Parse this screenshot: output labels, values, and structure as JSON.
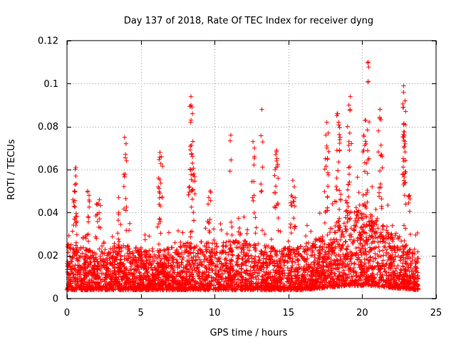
{
  "chart_data": {
    "type": "scatter",
    "title": "Day 137 of 2018, Rate Of TEC Index for receiver dyng",
    "xlabel": "GPS time / hours",
    "ylabel": "ROTI / TECUs",
    "xlim": [
      0,
      25
    ],
    "ylim": [
      0,
      0.12
    ],
    "xticks": [
      0,
      5,
      10,
      15,
      20,
      25
    ],
    "yticks": [
      0,
      0.02,
      0.04,
      0.06,
      0.08,
      0.1,
      0.12
    ],
    "xtick_labels": [
      "0",
      "5",
      "10",
      "15",
      "20",
      "25"
    ],
    "ytick_labels": [
      "0",
      "0.02",
      "0.04",
      "0.06",
      "0.08",
      "0.1",
      "0.12"
    ],
    "grid": true,
    "marker": "plus",
    "series_color": "#ff0000",
    "data_range": {
      "x": [
        0,
        23.8
      ]
    },
    "baseline_envelope": [
      {
        "x": 0.0,
        "low": 0.004,
        "high": 0.026
      },
      {
        "x": 2.0,
        "low": 0.004,
        "high": 0.022
      },
      {
        "x": 4.0,
        "low": 0.004,
        "high": 0.025
      },
      {
        "x": 6.0,
        "low": 0.004,
        "high": 0.022
      },
      {
        "x": 8.0,
        "low": 0.004,
        "high": 0.026
      },
      {
        "x": 10.0,
        "low": 0.004,
        "high": 0.027
      },
      {
        "x": 12.0,
        "low": 0.004,
        "high": 0.027
      },
      {
        "x": 14.0,
        "low": 0.004,
        "high": 0.024
      },
      {
        "x": 16.0,
        "low": 0.004,
        "high": 0.025
      },
      {
        "x": 17.5,
        "low": 0.005,
        "high": 0.03
      },
      {
        "x": 19.0,
        "low": 0.006,
        "high": 0.042
      },
      {
        "x": 20.5,
        "low": 0.006,
        "high": 0.04
      },
      {
        "x": 22.0,
        "low": 0.005,
        "high": 0.032
      },
      {
        "x": 23.8,
        "low": 0.004,
        "high": 0.022
      }
    ],
    "notable_points": [
      {
        "x": 0.6,
        "y": 0.061
      },
      {
        "x": 0.6,
        "y": 0.057
      },
      {
        "x": 0.5,
        "y": 0.05
      },
      {
        "x": 0.4,
        "y": 0.046
      },
      {
        "x": 1.4,
        "y": 0.05
      },
      {
        "x": 1.5,
        "y": 0.048
      },
      {
        "x": 2.0,
        "y": 0.044
      },
      {
        "x": 2.2,
        "y": 0.046
      },
      {
        "x": 3.5,
        "y": 0.047
      },
      {
        "x": 3.9,
        "y": 0.075
      },
      {
        "x": 4.0,
        "y": 0.072
      },
      {
        "x": 6.3,
        "y": 0.068
      },
      {
        "x": 6.4,
        "y": 0.066
      },
      {
        "x": 6.2,
        "y": 0.056
      },
      {
        "x": 6.3,
        "y": 0.049
      },
      {
        "x": 8.4,
        "y": 0.094
      },
      {
        "x": 8.4,
        "y": 0.09
      },
      {
        "x": 8.5,
        "y": 0.086
      },
      {
        "x": 8.4,
        "y": 0.083
      },
      {
        "x": 8.5,
        "y": 0.066
      },
      {
        "x": 8.5,
        "y": 0.063
      },
      {
        "x": 8.6,
        "y": 0.058
      },
      {
        "x": 8.3,
        "y": 0.052
      },
      {
        "x": 9.7,
        "y": 0.05
      },
      {
        "x": 9.6,
        "y": 0.047
      },
      {
        "x": 11.1,
        "y": 0.076
      },
      {
        "x": 12.6,
        "y": 0.073
      },
      {
        "x": 12.7,
        "y": 0.07
      },
      {
        "x": 12.7,
        "y": 0.066
      },
      {
        "x": 13.2,
        "y": 0.088
      },
      {
        "x": 14.2,
        "y": 0.069
      },
      {
        "x": 14.2,
        "y": 0.064
      },
      {
        "x": 14.1,
        "y": 0.06
      },
      {
        "x": 14.3,
        "y": 0.056
      },
      {
        "x": 15.3,
        "y": 0.055
      },
      {
        "x": 15.4,
        "y": 0.052
      },
      {
        "x": 15.2,
        "y": 0.048
      },
      {
        "x": 17.6,
        "y": 0.082
      },
      {
        "x": 17.7,
        "y": 0.077
      },
      {
        "x": 17.6,
        "y": 0.071
      },
      {
        "x": 17.5,
        "y": 0.065
      },
      {
        "x": 18.3,
        "y": 0.086
      },
      {
        "x": 18.4,
        "y": 0.082
      },
      {
        "x": 18.5,
        "y": 0.075
      },
      {
        "x": 19.2,
        "y": 0.094
      },
      {
        "x": 19.1,
        "y": 0.09
      },
      {
        "x": 19.0,
        "y": 0.08
      },
      {
        "x": 19.1,
        "y": 0.073
      },
      {
        "x": 20.2,
        "y": 0.083
      },
      {
        "x": 20.1,
        "y": 0.076
      },
      {
        "x": 20.1,
        "y": 0.069
      },
      {
        "x": 20.3,
        "y": 0.063
      },
      {
        "x": 20.4,
        "y": 0.11
      },
      {
        "x": 20.4,
        "y": 0.101
      },
      {
        "x": 21.2,
        "y": 0.088
      },
      {
        "x": 21.1,
        "y": 0.078
      },
      {
        "x": 21.3,
        "y": 0.067
      },
      {
        "x": 22.8,
        "y": 0.099
      },
      {
        "x": 22.8,
        "y": 0.096
      },
      {
        "x": 22.9,
        "y": 0.092
      },
      {
        "x": 22.8,
        "y": 0.081
      },
      {
        "x": 22.8,
        "y": 0.075
      },
      {
        "x": 22.9,
        "y": 0.072
      },
      {
        "x": 22.9,
        "y": 0.059
      },
      {
        "x": 23.2,
        "y": 0.048
      }
    ]
  }
}
